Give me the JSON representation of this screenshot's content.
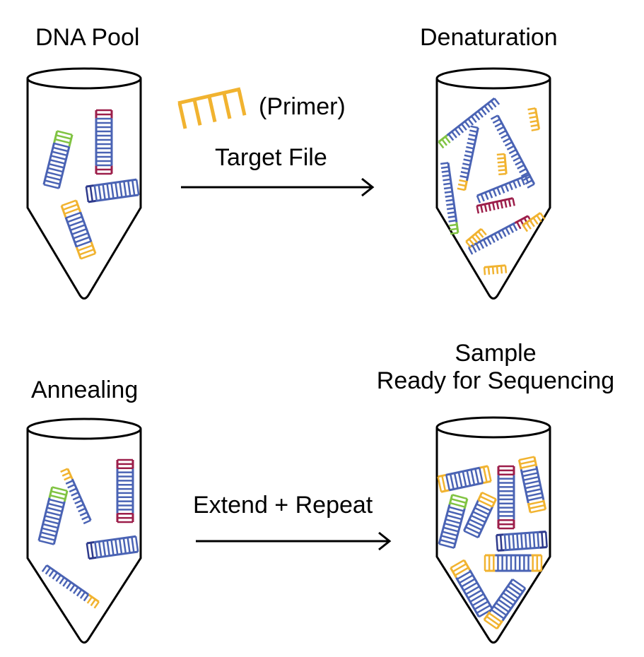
{
  "title_dna_pool": "DNA Pool",
  "title_denaturation": "Denaturation",
  "title_annealing": "Annealing",
  "title_sample_line1": "Sample",
  "title_sample_line2": "Ready for Sequencing",
  "primer_label": "(Primer)",
  "step_target_file": "Target File",
  "step_extend_repeat": "Extend + Repeat",
  "colors": {
    "blue": "#4a63b4",
    "navy": "#2e3a8c",
    "orange": "#f1b330",
    "green": "#80c342",
    "crimson": "#9c1e4a",
    "outline": "#000000"
  }
}
